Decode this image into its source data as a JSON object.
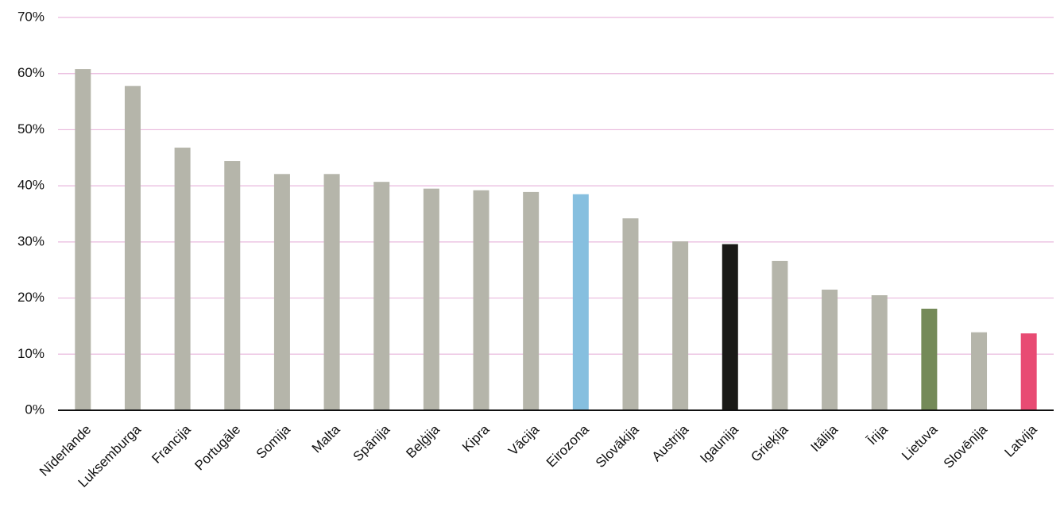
{
  "chart_data": {
    "type": "bar",
    "categories": [
      "Nīderlande",
      "Luksemburga",
      "Francija",
      "Portugāle",
      "Somija",
      "Malta",
      "Spānija",
      "Beļģija",
      "Kipra",
      "Vācija",
      "Eirozona",
      "Slovākija",
      "Austrija",
      "Igaunija",
      "Grieķija",
      "Itālija",
      "Īrija",
      "Lietuva",
      "Slovēnija",
      "Latvija"
    ],
    "values": [
      60.8,
      57.8,
      46.8,
      44.4,
      42.1,
      42.1,
      40.7,
      39.5,
      39.2,
      38.9,
      38.5,
      34.2,
      30.1,
      29.6,
      26.6,
      21.5,
      20.5,
      18.1,
      13.9,
      13.7
    ],
    "colors": [
      "#b5b5aa",
      "#b5b5aa",
      "#b5b5aa",
      "#b5b5aa",
      "#b5b5aa",
      "#b5b5aa",
      "#b5b5aa",
      "#b5b5aa",
      "#b5b5aa",
      "#b5b5aa",
      "#86bfdf",
      "#b5b5aa",
      "#b5b5aa",
      "#1a1a17",
      "#b5b5aa",
      "#b5b5aa",
      "#b5b5aa",
      "#748a58",
      "#b5b5aa",
      "#e84b73"
    ],
    "ylim": [
      0,
      70
    ],
    "yticks": [
      {
        "value": 0,
        "label": "0%"
      },
      {
        "value": 10,
        "label": "10%"
      },
      {
        "value": 20,
        "label": "20%"
      },
      {
        "value": 30,
        "label": "30%"
      },
      {
        "value": 40,
        "label": "40%"
      },
      {
        "value": 50,
        "label": "50%"
      },
      {
        "value": 60,
        "label": "60%"
      },
      {
        "value": 70,
        "label": "70%"
      }
    ],
    "grid": true
  }
}
